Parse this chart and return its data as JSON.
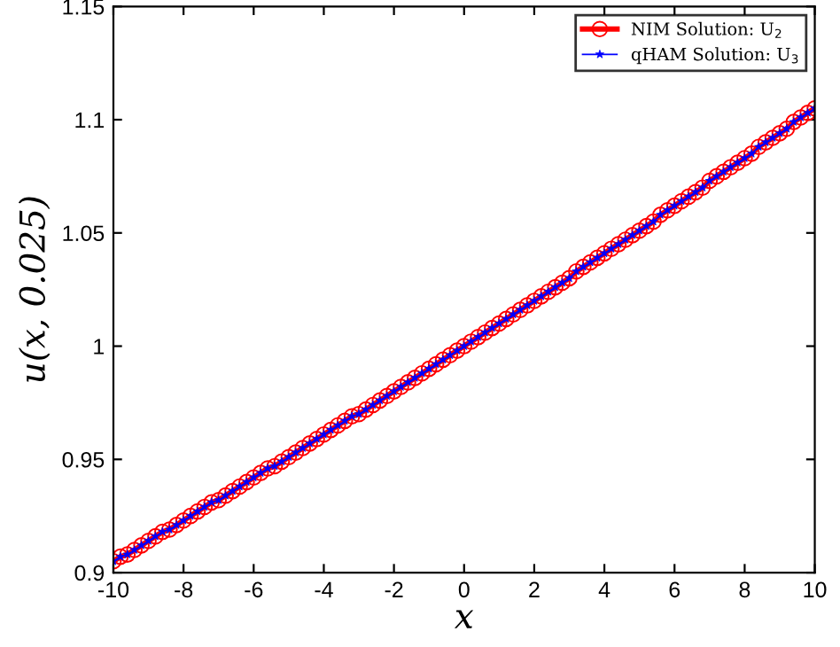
{
  "chart_data": {
    "type": "line",
    "xlabel": "x",
    "ylabel": "u(x, 0.025)",
    "x": [
      -10,
      -9.8,
      -9.6,
      -9.4,
      -9.2,
      -9,
      -8.8,
      -8.6,
      -8.4,
      -8.2,
      -8,
      -7.8,
      -7.6,
      -7.4,
      -7.2,
      -7,
      -6.8,
      -6.6,
      -6.4,
      -6.2,
      -6,
      -5.8,
      -5.6,
      -5.4,
      -5.2,
      -5,
      -4.8,
      -4.6,
      -4.4,
      -4.2,
      -4,
      -3.8,
      -3.6,
      -3.4,
      -3.2,
      -3,
      -2.8,
      -2.6,
      -2.4,
      -2.2,
      -2,
      -1.8,
      -1.6,
      -1.4,
      -1.2,
      -1,
      -0.8,
      -0.6,
      -0.4,
      -0.2,
      0,
      0.2,
      0.4,
      0.6,
      0.8,
      1,
      1.2,
      1.4,
      1.6,
      1.8,
      2,
      2.2,
      2.4,
      2.6,
      2.8,
      3,
      3.2,
      3.4,
      3.6,
      3.8,
      4,
      4.2,
      4.4,
      4.6,
      4.8,
      5,
      5.2,
      5.4,
      5.6,
      5.8,
      6,
      6.2,
      6.4,
      6.6,
      6.8,
      7,
      7.2,
      7.4,
      7.6,
      7.8,
      8,
      8.2,
      8.4,
      8.6,
      8.8,
      9,
      9.2,
      9.4,
      9.6,
      9.8,
      10
    ],
    "series": [
      {
        "name": "NIM Solution: U$_{2}$",
        "color": "#ff0000",
        "marker": "circle",
        "values": [
          0.905,
          0.907,
          0.908,
          0.91,
          0.912,
          0.914,
          0.916,
          0.918,
          0.919,
          0.921,
          0.923,
          0.925,
          0.927,
          0.929,
          0.931,
          0.932,
          0.934,
          0.936,
          0.938,
          0.94,
          0.942,
          0.944,
          0.946,
          0.947,
          0.949,
          0.951,
          0.953,
          0.955,
          0.957,
          0.959,
          0.961,
          0.963,
          0.965,
          0.967,
          0.969,
          0.97,
          0.972,
          0.974,
          0.976,
          0.978,
          0.98,
          0.982,
          0.984,
          0.986,
          0.988,
          0.99,
          0.992,
          0.994,
          0.996,
          0.998,
          1.0,
          1.002,
          1.004,
          1.006,
          1.008,
          1.01,
          1.012,
          1.014,
          1.016,
          1.018,
          1.02,
          1.022,
          1.024,
          1.026,
          1.028,
          1.03,
          1.033,
          1.035,
          1.037,
          1.039,
          1.041,
          1.043,
          1.045,
          1.047,
          1.049,
          1.051,
          1.053,
          1.055,
          1.058,
          1.06,
          1.062,
          1.064,
          1.066,
          1.068,
          1.07,
          1.073,
          1.075,
          1.077,
          1.079,
          1.081,
          1.083,
          1.085,
          1.088,
          1.09,
          1.092,
          1.094,
          1.096,
          1.099,
          1.101,
          1.103,
          1.105
        ]
      },
      {
        "name": "qHAM Solution: U$_{3}$",
        "color": "#0000ff",
        "marker": "star",
        "values": [
          0.905,
          0.907,
          0.908,
          0.91,
          0.912,
          0.914,
          0.916,
          0.918,
          0.919,
          0.921,
          0.923,
          0.925,
          0.927,
          0.929,
          0.931,
          0.932,
          0.934,
          0.936,
          0.938,
          0.94,
          0.942,
          0.944,
          0.946,
          0.947,
          0.949,
          0.951,
          0.953,
          0.955,
          0.957,
          0.959,
          0.961,
          0.963,
          0.965,
          0.967,
          0.969,
          0.97,
          0.972,
          0.974,
          0.976,
          0.978,
          0.98,
          0.982,
          0.984,
          0.986,
          0.988,
          0.99,
          0.992,
          0.994,
          0.996,
          0.998,
          1.0,
          1.002,
          1.004,
          1.006,
          1.008,
          1.01,
          1.012,
          1.014,
          1.016,
          1.018,
          1.02,
          1.022,
          1.024,
          1.026,
          1.028,
          1.03,
          1.033,
          1.035,
          1.037,
          1.039,
          1.041,
          1.043,
          1.045,
          1.047,
          1.049,
          1.051,
          1.053,
          1.055,
          1.058,
          1.06,
          1.062,
          1.064,
          1.066,
          1.068,
          1.07,
          1.073,
          1.075,
          1.077,
          1.079,
          1.081,
          1.083,
          1.085,
          1.088,
          1.09,
          1.092,
          1.094,
          1.096,
          1.099,
          1.101,
          1.103,
          1.105
        ]
      }
    ],
    "xlim": [
      -10,
      10
    ],
    "ylim": [
      0.9,
      1.15
    ],
    "xticks": [
      -10,
      -8,
      -6,
      -4,
      -2,
      0,
      2,
      4,
      6,
      8,
      10
    ],
    "yticks": [
      0.9,
      0.95,
      1,
      1.05,
      1.1,
      1.15
    ],
    "legend": "top right",
    "line_style": "solid"
  }
}
